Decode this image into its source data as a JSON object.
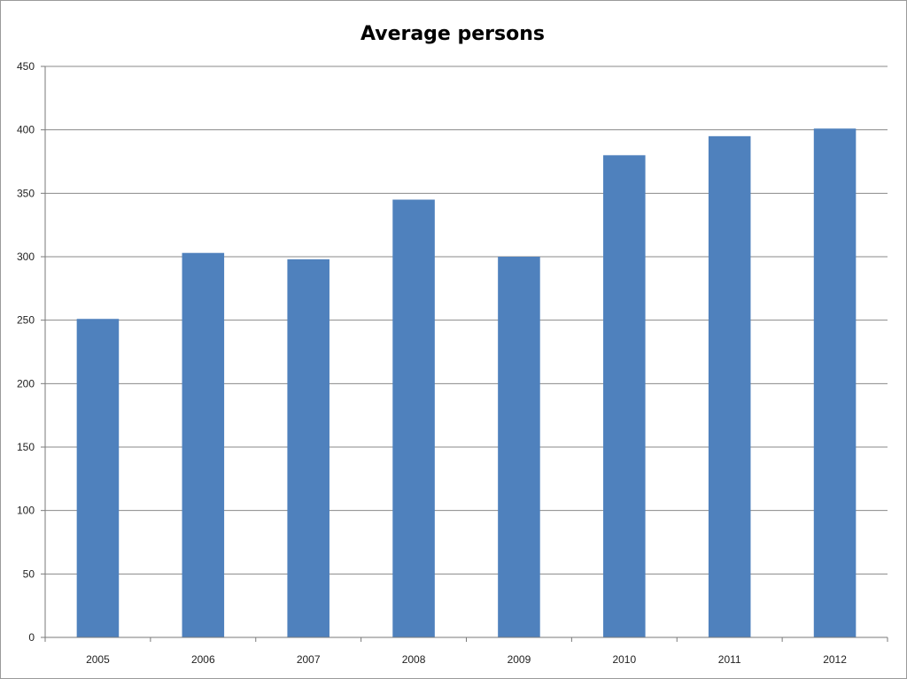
{
  "chart_data": {
    "type": "bar",
    "title": "Average persons",
    "xlabel": "",
    "ylabel": "",
    "categories": [
      "2005",
      "2006",
      "2007",
      "2008",
      "2009",
      "2010",
      "2011",
      "2012"
    ],
    "values": [
      251,
      303,
      298,
      345,
      300,
      380,
      395,
      401
    ],
    "ylim": [
      0,
      450
    ],
    "yticks": [
      0,
      50,
      100,
      150,
      200,
      250,
      300,
      350,
      400,
      450
    ],
    "grid": true,
    "legend": "none",
    "bar_color": "#4f81bd",
    "tick_label_color": "#222222"
  }
}
